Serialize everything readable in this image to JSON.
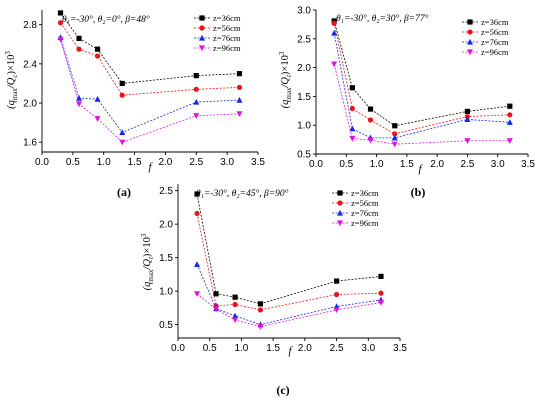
{
  "chart_data": [
    {
      "type": "line",
      "panel_label": "(a)",
      "condition": "θ₁=-30°, θ₂=0°, β=48°",
      "xlabel": "f",
      "ylabel_parts": {
        "open": "(q",
        "sub1": "max",
        "mid": "/Q",
        "sub2": "c",
        "close": ")×10",
        "sup": "3"
      },
      "xlim": [
        0.0,
        3.5
      ],
      "ylim": [
        1.5,
        2.95
      ],
      "xticks": [
        "0.0",
        "0.5",
        "1.0",
        "1.5",
        "2.0",
        "2.5",
        "3.0",
        "3.5"
      ],
      "yticks": [
        "1.6",
        "2.0",
        "2.4",
        "2.8"
      ],
      "x": [
        0.3,
        0.6,
        0.9,
        1.3,
        2.5,
        3.2
      ],
      "series": [
        {
          "name": "z=36cm",
          "values": [
            2.92,
            2.66,
            2.55,
            2.2,
            2.28,
            2.3
          ]
        },
        {
          "name": "z=56cm",
          "values": [
            2.82,
            2.55,
            2.48,
            2.08,
            2.14,
            2.16
          ]
        },
        {
          "name": "z=76cm",
          "values": [
            2.67,
            2.05,
            2.04,
            1.7,
            2.01,
            2.03
          ]
        },
        {
          "name": "z=96cm",
          "values": [
            2.65,
            1.99,
            1.84,
            1.6,
            1.87,
            1.89
          ]
        }
      ]
    },
    {
      "type": "line",
      "panel_label": "(b)",
      "condition": "θ₁=-30°, θ₂=30°, β=77°",
      "xlabel": "f",
      "ylabel_parts": {
        "open": "(q",
        "sub1": "max",
        "mid": "/Q",
        "sub2": "t",
        "close": ")×10",
        "sup": "3"
      },
      "xlim": [
        0.0,
        3.5
      ],
      "ylim": [
        0.5,
        3.0
      ],
      "xticks": [
        "0.0",
        "0.5",
        "1.0",
        "1.5",
        "2.0",
        "2.5",
        "3.0",
        "3.5"
      ],
      "yticks": [
        "0.5",
        "1.0",
        "1.5",
        "2.0",
        "2.5",
        "3.0"
      ],
      "x": [
        0.3,
        0.6,
        0.9,
        1.3,
        2.5,
        3.2
      ],
      "series": [
        {
          "name": "z=36cm",
          "values": [
            2.81,
            1.65,
            1.28,
            0.99,
            1.24,
            1.33
          ]
        },
        {
          "name": "z=56cm",
          "values": [
            2.77,
            1.29,
            1.09,
            0.85,
            1.15,
            1.18
          ]
        },
        {
          "name": "z=76cm",
          "values": [
            2.6,
            0.94,
            0.78,
            0.78,
            1.1,
            1.05
          ]
        },
        {
          "name": "z=96cm",
          "values": [
            2.06,
            0.77,
            0.74,
            0.67,
            0.73,
            0.73
          ]
        }
      ]
    },
    {
      "type": "line",
      "panel_label": "(c)",
      "condition": "θ₁=-30°, θ₂=45°, β=90°",
      "xlabel": "f",
      "ylabel_parts": {
        "open": "(q",
        "sub1": "max",
        "mid": "/Q",
        "sub2": "t",
        "close": ")×10",
        "sup": "3"
      },
      "xlim": [
        0.0,
        3.5
      ],
      "ylim": [
        0.3,
        2.6
      ],
      "xticks": [
        "0.0",
        "0.5",
        "1.0",
        "1.5",
        "2.0",
        "2.5",
        "3.0",
        "3.5"
      ],
      "yticks": [
        "0.5",
        "1.0",
        "1.5",
        "2.0",
        "2.5"
      ],
      "x": [
        0.3,
        0.6,
        0.9,
        1.3,
        2.5,
        3.2
      ],
      "series": [
        {
          "name": "z=36cm",
          "values": [
            2.45,
            0.96,
            0.91,
            0.81,
            1.15,
            1.22
          ]
        },
        {
          "name": "z=56cm",
          "values": [
            2.16,
            0.78,
            0.8,
            0.72,
            0.95,
            0.97
          ]
        },
        {
          "name": "z=76cm",
          "values": [
            1.4,
            0.74,
            0.63,
            0.5,
            0.77,
            0.87
          ]
        },
        {
          "name": "z=96cm",
          "values": [
            0.96,
            0.73,
            0.57,
            0.47,
            0.72,
            0.83
          ]
        }
      ]
    }
  ],
  "colors": [
    "#000000",
    "#e8141a",
    "#1526e8",
    "#e014e0"
  ],
  "markers": [
    "square",
    "circle",
    "triangle-up",
    "triangle-down"
  ]
}
